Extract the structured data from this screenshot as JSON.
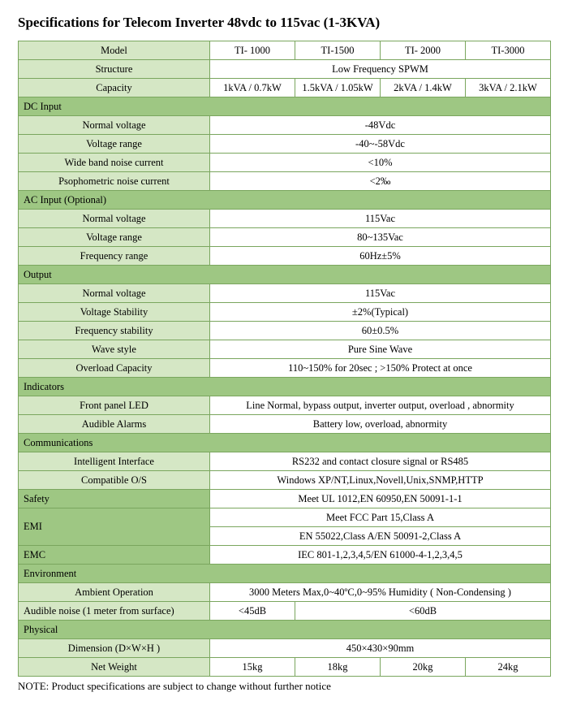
{
  "title": "Specifications for Telecom  Inverter 48vdc to 115vac (1-3KVA)",
  "header": {
    "modelLabel": "Model",
    "models": [
      "TI- 1000",
      "TI-1500",
      "TI- 2000",
      "TI-3000"
    ],
    "structureLabel": "Structure",
    "structureValue": "Low Frequency SPWM",
    "capacityLabel": "Capacity",
    "capacities": [
      "1kVA / 0.7kW",
      "1.5kVA / 1.05kW",
      "2kVA / 1.4kW",
      "3kVA / 2.1kW"
    ]
  },
  "sections": {
    "dcInput": {
      "title": "DC Input",
      "rows": [
        {
          "label": "Normal voltage",
          "value": "-48Vdc"
        },
        {
          "label": "Voltage range",
          "value": "-40~-58Vdc"
        },
        {
          "label": "Wide band noise current",
          "value": "<10%"
        },
        {
          "label": "Psophometric noise  current",
          "value": "<2‰"
        }
      ]
    },
    "acInput": {
      "title": "AC Input (Optional)",
      "rows": [
        {
          "label": "Normal voltage",
          "value": "115Vac"
        },
        {
          "label": "Voltage range",
          "value": "80~135Vac"
        },
        {
          "label": "Frequency range",
          "value": "60Hz±5%"
        }
      ]
    },
    "output": {
      "title": "Output",
      "rows": [
        {
          "label": "Normal voltage",
          "value": "115Vac"
        },
        {
          "label": "Voltage Stability",
          "value": "±2%(Typical)"
        },
        {
          "label": "Frequency stability",
          "value": "60±0.5%"
        },
        {
          "label": "Wave style",
          "value": "Pure Sine Wave"
        },
        {
          "label": "Overload Capacity",
          "value": "110~150% for 20sec ; >150% Protect at once"
        }
      ]
    },
    "indicators": {
      "title": "Indicators",
      "rows": [
        {
          "label": "Front panel LED",
          "value": "Line Normal, bypass output, inverter output, overload , abnormity"
        },
        {
          "label": "Audible Alarms",
          "value": "Battery low, overload, abnormity"
        }
      ]
    },
    "communications": {
      "title": "Communications",
      "rows": [
        {
          "label": "Intelligent Interface",
          "value": "RS232 and contact closure signal or RS485"
        },
        {
          "label": "Compatible O/S",
          "value": "Windows XP/NT,Linux,Novell,Unix,SNMP,HTTP"
        }
      ]
    },
    "safety": {
      "title": "Safety",
      "value": "Meet UL 1012,EN 60950,EN 50091-1-1"
    },
    "emi": {
      "title": "EMI",
      "values": [
        "Meet FCC Part 15,Class A",
        "EN 55022,Class A/EN 50091-2,Class A"
      ]
    },
    "emc": {
      "title": "EMC",
      "value": "IEC 801-1,2,3,4,5/EN 61000-4-1,2,3,4,5"
    },
    "environment": {
      "title": "Environment",
      "ambientLabel": "Ambient Operation",
      "ambientValue": "3000 Meters Max,0~40ºC,0~95% Humidity ( Non-Condensing )",
      "audibleLabel": "Audible noise (1 meter from surface)",
      "audibleValues": [
        "<45dB",
        "<60dB"
      ]
    },
    "physical": {
      "title": "Physical",
      "dimensionLabel": "Dimension (D×W×H )",
      "dimensionValue": "450×430×90mm",
      "netWeightLabel": "Net Weight",
      "netWeights": [
        "15kg",
        "18kg",
        "20kg",
        "24kg"
      ]
    }
  },
  "note": "NOTE: Product specifications are subject to change without further notice"
}
